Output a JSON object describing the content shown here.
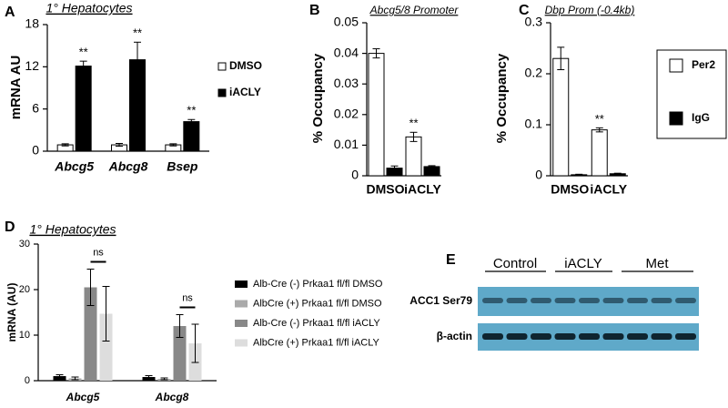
{
  "chart_data": [
    {
      "type": "bar",
      "panel_label": "A",
      "title": "1° Hepatocytes",
      "y_label": "mRNA AU",
      "categories": [
        "Abcg5",
        "Abcg8",
        "Bsep"
      ],
      "ylim": [
        0,
        18
      ],
      "yticks": [
        0,
        6,
        12,
        18
      ],
      "series": [
        {
          "name": "DMSO",
          "color": "#ffffff",
          "values": [
            0.9,
            0.9,
            0.9
          ],
          "errors": [
            0.15,
            0.2,
            0.15
          ]
        },
        {
          "name": "iACLY",
          "color": "#000000",
          "values": [
            12.1,
            13,
            4.2
          ],
          "errors": [
            0.7,
            2.5,
            0.3
          ],
          "annotations": [
            "**",
            "**",
            "**"
          ]
        }
      ]
    },
    {
      "type": "bar",
      "panel_label": "B",
      "title": "Abcg5/8 Promoter",
      "y_label": "% Occupancy",
      "categories": [
        "DMSO",
        "iACLY"
      ],
      "ylim": [
        0,
        0.05
      ],
      "yticks": [
        0,
        0.01,
        0.02,
        0.03,
        0.04,
        0.05
      ],
      "series": [
        {
          "name": "Per2",
          "color": "#ffffff",
          "values": [
            0.04,
            0.0127
          ],
          "errors": [
            0.0015,
            0.0015
          ],
          "annotations": [
            null,
            "**"
          ]
        },
        {
          "name": "IgG",
          "color": "#000000",
          "values": [
            0.0025,
            0.003
          ],
          "errors": [
            0.0007,
            0.0003
          ]
        }
      ]
    },
    {
      "type": "bar",
      "panel_label": "C",
      "title": "Dbp Prom (-0.4kb)",
      "y_label": "% Occupancy",
      "categories": [
        "DMSO",
        "iACLY"
      ],
      "ylim": [
        0,
        0.3
      ],
      "yticks": [
        0,
        0.1,
        0.2,
        0.3
      ],
      "series": [
        {
          "name": "Per2",
          "color": "#ffffff",
          "values": [
            0.23,
            0.09
          ],
          "errors": [
            0.022,
            0.004
          ],
          "annotations": [
            null,
            "**"
          ]
        },
        {
          "name": "IgG",
          "color": "#000000",
          "values": [
            0.002,
            0.004
          ],
          "errors": [
            0.001,
            0.001
          ]
        }
      ]
    },
    {
      "type": "bar",
      "panel_label": "D",
      "title": "1° Hepatocytes",
      "y_label": "mRNA (AU)",
      "categories": [
        "Abcg5",
        "Abcg8"
      ],
      "ylim": [
        0,
        30
      ],
      "yticks": [
        0,
        10,
        20,
        30
      ],
      "series": [
        {
          "name": "Alb-Cre (-) Prkaa1 fl/fl DMSO",
          "color": "#000000",
          "values": [
            1.0,
            0.8
          ],
          "errors": [
            0.3,
            0.3
          ]
        },
        {
          "name": "AlbCre (+) Prkaa1 fl/fl DMSO",
          "color": "#aaaaaa",
          "values": [
            0.5,
            0.4
          ],
          "errors": [
            0.3,
            0.2
          ]
        },
        {
          "name": "Alb-Cre (-) Prkaa1 fl/fl iACLY",
          "color": "#888888",
          "values": [
            20.5,
            12
          ],
          "errors": [
            4,
            2.5
          ]
        },
        {
          "name": "AlbCre (+) Prkaa1 fl/fl iACLY",
          "color": "#dddddd",
          "values": [
            14.7,
            8.2
          ],
          "errors": [
            6,
            4.2
          ],
          "annotations": [
            "ns",
            "ns"
          ]
        }
      ]
    }
  ],
  "blot": {
    "panel_label": "E",
    "groups": [
      "Control",
      "iACLY",
      "Met"
    ],
    "rows": [
      "ACC1 Ser79",
      "β-actin"
    ]
  }
}
